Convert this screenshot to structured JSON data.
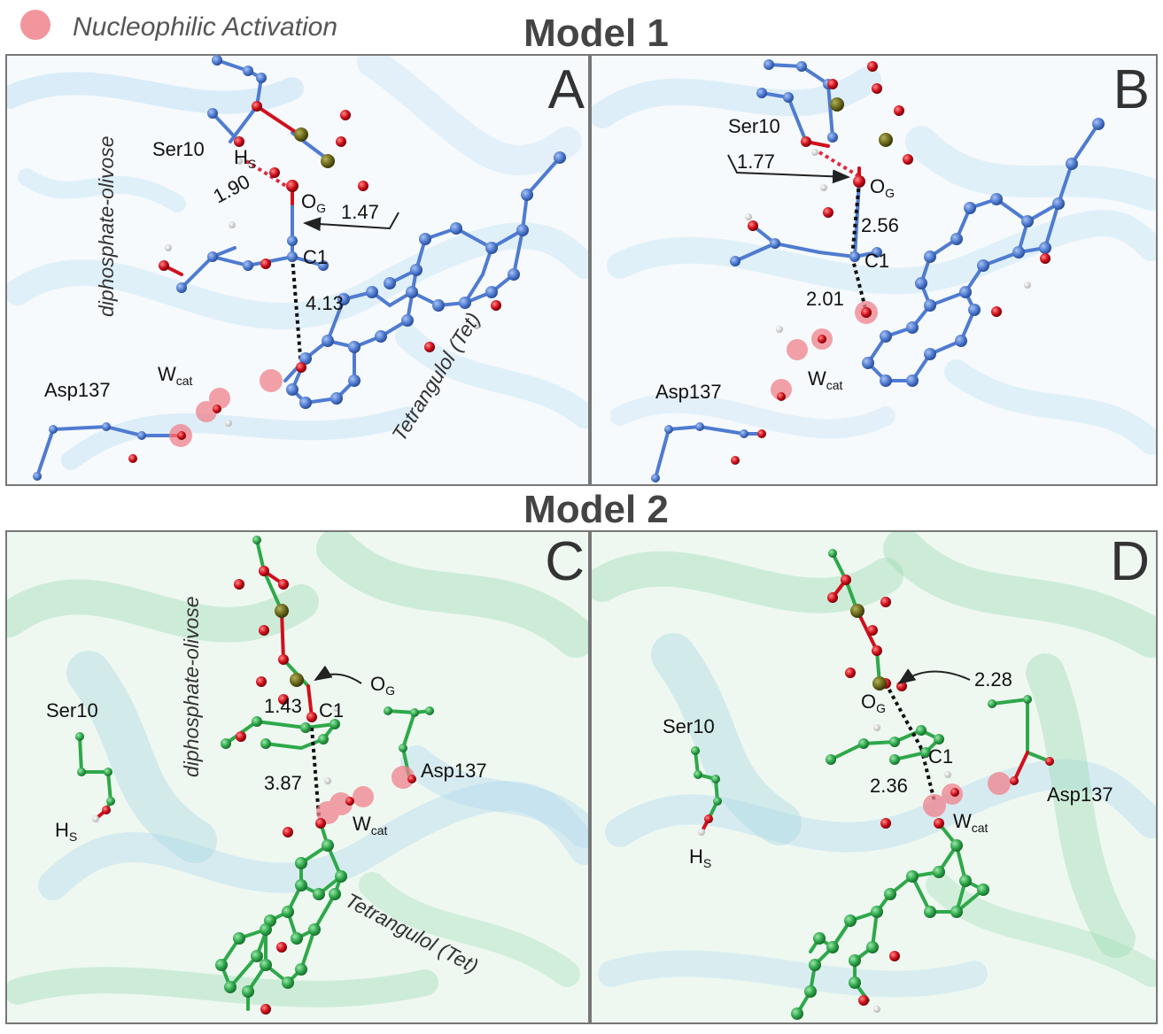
{
  "legend": {
    "label": "Nucleophilic Activation",
    "marker_color": "#f0828c"
  },
  "models": [
    {
      "title": "Model 1",
      "color": "#4f7bd0",
      "ribbon_color": "#a9d3ee"
    },
    {
      "title": "Model 2",
      "color": "#2ea84a",
      "ribbon_color": "#8fd6a8"
    }
  ],
  "panels": {
    "A": {
      "letter": "A",
      "residues": {
        "ser": "Ser10",
        "asp": "Asp137",
        "water": "W",
        "water_sub": "cat",
        "hs": "H",
        "hs_sub": "S"
      },
      "atoms": {
        "og": "O",
        "og_sub": "G",
        "c1": "C1"
      },
      "distances": {
        "hs_og": "1.90",
        "og_c1": "1.47",
        "c1_tet": "4.13"
      },
      "ligand_labels": {
        "sugar": "diphosphate-olivose",
        "tet": "Tetrangulol (Tet)"
      }
    },
    "B": {
      "letter": "B",
      "residues": {
        "ser": "Ser10",
        "asp": "Asp137",
        "water": "W",
        "water_sub": "cat"
      },
      "atoms": {
        "og": "O",
        "og_sub": "G",
        "c1": "C1"
      },
      "distances": {
        "hs_og": "1.77",
        "og_c1": "2.56",
        "c1_tet": "2.01"
      }
    },
    "C": {
      "letter": "C",
      "residues": {
        "ser": "Ser10",
        "asp": "Asp137",
        "water": "W",
        "water_sub": "cat",
        "hs": "H",
        "hs_sub": "S"
      },
      "atoms": {
        "og": "O",
        "og_sub": "G",
        "c1": "C1"
      },
      "distances": {
        "og_c1": "1.43",
        "c1_tet": "3.87"
      },
      "ligand_labels": {
        "sugar": "diphosphate-olivose",
        "tet": "Tetrangulol (Tet)"
      }
    },
    "D": {
      "letter": "D",
      "residues": {
        "ser": "Ser10",
        "asp": "Asp137",
        "water": "W",
        "water_sub": "cat",
        "hs": "H",
        "hs_sub": "S"
      },
      "atoms": {
        "og": "O",
        "og_sub": "G",
        "c1": "C1"
      },
      "distances": {
        "og_c1": "2.28",
        "c1_tet": "2.36"
      }
    }
  }
}
